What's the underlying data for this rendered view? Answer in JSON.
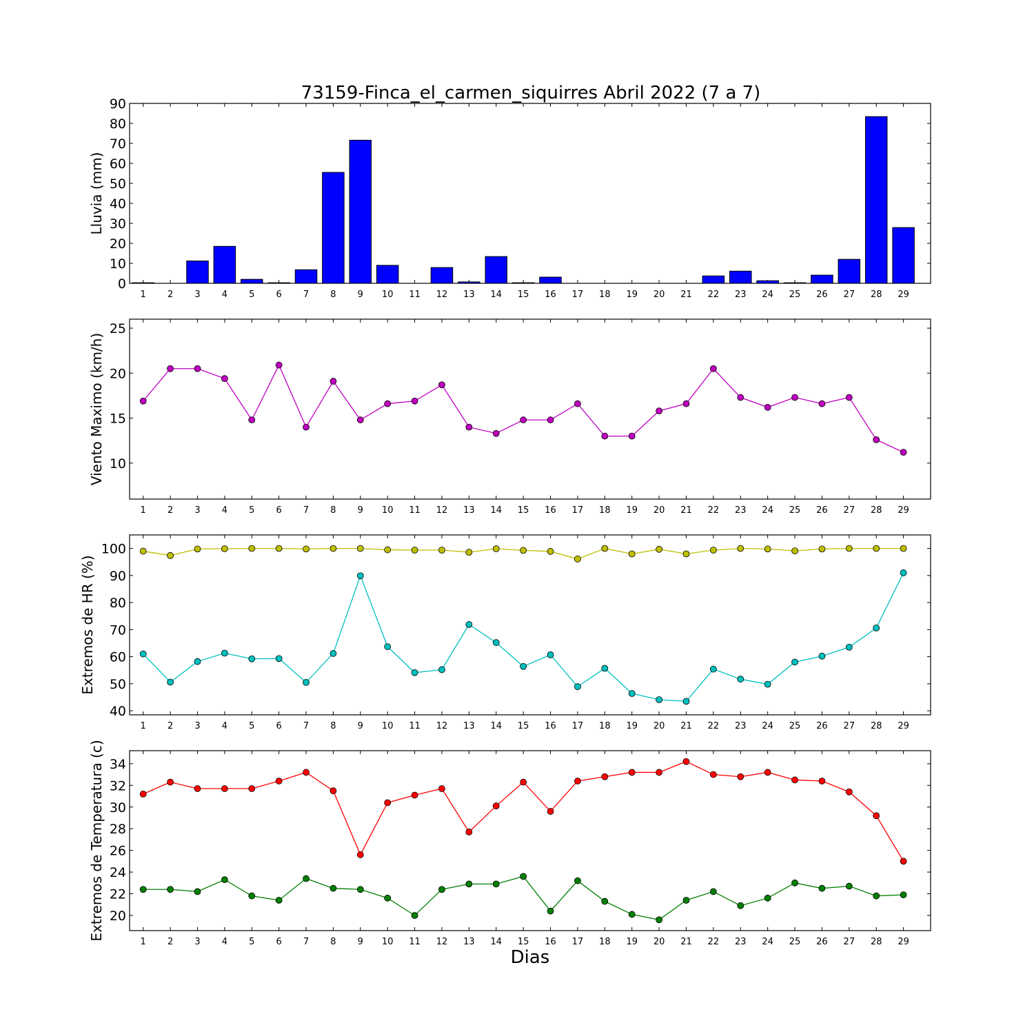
{
  "figure": {
    "title": "73159-Finca_el_carmen_siquirres Abril 2022  (7 a 7)",
    "xlabel": "Dias"
  },
  "chart_data": [
    {
      "type": "bar",
      "ylabel": "Lluvia (mm)",
      "ylim": [
        0,
        90
      ],
      "yticks": [
        0,
        10,
        20,
        30,
        40,
        50,
        60,
        70,
        80,
        90
      ],
      "categories": [
        "1",
        "2",
        "3",
        "4",
        "5",
        "6",
        "7",
        "8",
        "9",
        "10",
        "11",
        "12",
        "13",
        "14",
        "15",
        "16",
        "17",
        "18",
        "19",
        "20",
        "21",
        "22",
        "23",
        "24",
        "25",
        "26",
        "27",
        "28",
        "29"
      ],
      "series": [
        {
          "color": "#0000ff",
          "values": [
            0.3,
            0,
            11.2,
            18.5,
            2.0,
            0.3,
            6.8,
            55.5,
            71.6,
            9.0,
            0,
            7.9,
            0.7,
            13.4,
            0.3,
            3.1,
            0,
            0,
            0,
            0,
            0,
            3.7,
            6.1,
            1.3,
            0.3,
            4.1,
            12.0,
            83.4,
            27.9
          ]
        }
      ],
      "grid": false
    },
    {
      "type": "line",
      "ylabel": "Viento Maximo (km/h)",
      "ylim": [
        6,
        26
      ],
      "yticks": [
        10,
        15,
        20,
        25
      ],
      "x": [
        1,
        2,
        3,
        4,
        5,
        6,
        7,
        8,
        9,
        10,
        11,
        12,
        13,
        14,
        15,
        16,
        17,
        18,
        19,
        20,
        21,
        22,
        23,
        24,
        25,
        26,
        27,
        28,
        29
      ],
      "series": [
        {
          "color": "#bf00bf",
          "values": [
            16.9,
            20.5,
            20.5,
            19.4,
            14.8,
            20.9,
            14.0,
            19.1,
            14.8,
            16.6,
            16.9,
            18.7,
            14.0,
            13.3,
            14.8,
            14.8,
            16.6,
            13.0,
            13.0,
            15.8,
            16.6,
            20.5,
            17.3,
            16.2,
            17.3,
            16.6,
            17.3,
            12.6,
            11.2
          ]
        }
      ],
      "grid": false
    },
    {
      "type": "line",
      "ylabel": "Extremos de HR (%)",
      "ylim": [
        38.5,
        105
      ],
      "yticks": [
        40,
        50,
        60,
        70,
        80,
        90,
        100
      ],
      "x": [
        1,
        2,
        3,
        4,
        5,
        6,
        7,
        8,
        9,
        10,
        11,
        12,
        13,
        14,
        15,
        16,
        17,
        18,
        19,
        20,
        21,
        22,
        23,
        24,
        25,
        26,
        27,
        28,
        29
      ],
      "series": [
        {
          "color": "#bfbf00",
          "values": [
            99.0,
            97.4,
            99.8,
            99.9,
            100,
            100,
            99.8,
            100,
            100,
            99.5,
            99.4,
            99.4,
            98.6,
            99.9,
            99.3,
            98.9,
            96.1,
            100,
            98.0,
            99.7,
            98.0,
            99.4,
            100,
            99.8,
            99.1,
            99.8,
            100,
            100,
            100
          ]
        },
        {
          "color": "#00bfbf",
          "values": [
            61.0,
            50.6,
            58.2,
            61.3,
            59.2,
            59.3,
            50.5,
            61.2,
            89.9,
            63.7,
            54.1,
            55.2,
            71.9,
            65.2,
            56.4,
            60.7,
            48.9,
            55.7,
            46.4,
            44.1,
            43.5,
            55.4,
            51.7,
            49.8,
            58.0,
            60.2,
            63.5,
            70.6,
            91.0
          ]
        }
      ],
      "grid": false
    },
    {
      "type": "line",
      "ylabel": "Extremos de Temperatura (c)",
      "ylim": [
        18.6,
        35.2
      ],
      "yticks": [
        20,
        22,
        24,
        26,
        28,
        30,
        32,
        34
      ],
      "x": [
        1,
        2,
        3,
        4,
        5,
        6,
        7,
        8,
        9,
        10,
        11,
        12,
        13,
        14,
        15,
        16,
        17,
        18,
        19,
        20,
        21,
        22,
        23,
        24,
        25,
        26,
        27,
        28,
        29
      ],
      "series": [
        {
          "color": "#ff0000",
          "values": [
            31.2,
            32.3,
            31.7,
            31.7,
            31.7,
            32.4,
            33.2,
            31.5,
            25.6,
            30.4,
            31.1,
            31.7,
            27.7,
            30.1,
            32.3,
            29.6,
            32.4,
            32.8,
            33.2,
            33.2,
            34.2,
            33.0,
            32.8,
            33.2,
            32.5,
            32.4,
            31.4,
            29.2,
            25.0
          ]
        },
        {
          "color": "#007f00",
          "values": [
            22.4,
            22.4,
            22.2,
            23.3,
            21.8,
            21.4,
            23.4,
            22.5,
            22.4,
            21.6,
            20.0,
            22.4,
            22.9,
            22.9,
            23.6,
            20.4,
            23.2,
            21.3,
            20.1,
            19.6,
            21.4,
            22.2,
            20.9,
            21.6,
            23.0,
            22.5,
            22.7,
            21.8,
            21.9
          ]
        }
      ],
      "grid": false
    }
  ]
}
